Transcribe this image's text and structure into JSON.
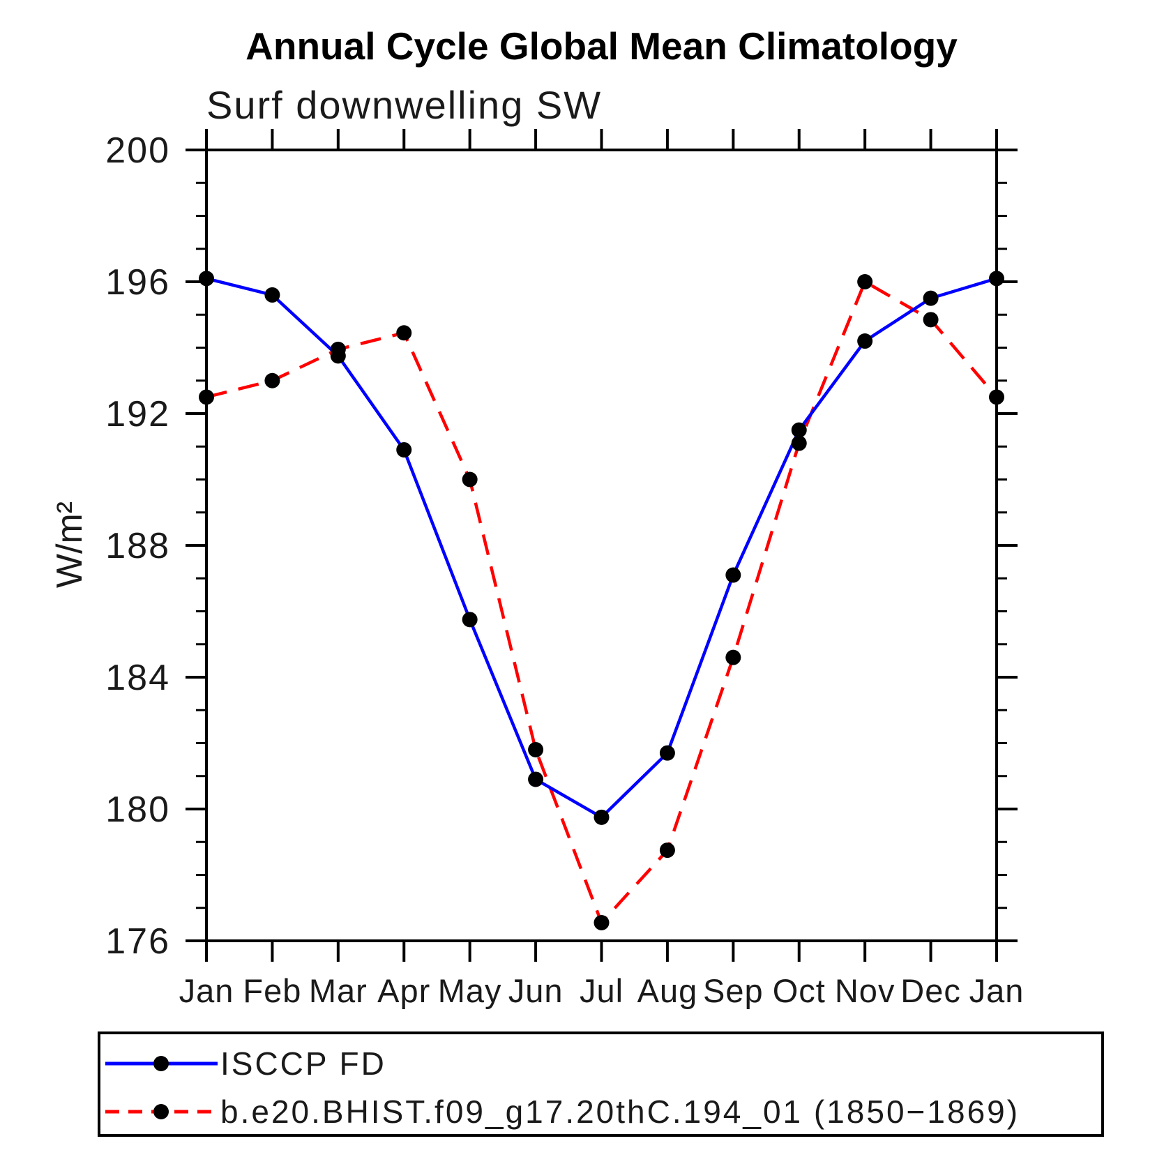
{
  "chart": {
    "title": "Annual Cycle Global Mean Climatology",
    "subtitle": "Surf downwelling SW",
    "ylabel": "W/m²"
  },
  "chart_data": {
    "type": "line",
    "title": "Annual Cycle Global Mean Climatology",
    "subtitle": "Surf downwelling SW",
    "xlabel": "",
    "ylabel": "W/m²",
    "x_categories": [
      "Jan",
      "Feb",
      "Mar",
      "Apr",
      "May",
      "Jun",
      "Jul",
      "Aug",
      "Sep",
      "Oct",
      "Nov",
      "Dec",
      "Jan"
    ],
    "ylim": [
      176,
      200
    ],
    "y_major_step": 4,
    "y_minor_step": 1,
    "y_major_ticks": [
      176,
      180,
      184,
      188,
      192,
      196,
      200
    ],
    "grid": false,
    "legend_position": "bottom",
    "axis_color": "#000000",
    "marker_color": "#000000",
    "series": [
      {
        "name": "ISCCP FD",
        "color": "#0000FF",
        "line_style": "solid",
        "marker": "circle",
        "values": [
          196.1,
          195.6,
          193.75,
          190.9,
          185.75,
          180.9,
          179.75,
          181.7,
          187.1,
          191.5,
          194.2,
          195.5,
          196.1
        ]
      },
      {
        "name": "b.e20.BHIST.f09_g17.20thC.194_01 (1850−1869)",
        "color": "#FF0000",
        "line_style": "dashed",
        "marker": "circle",
        "values": [
          192.5,
          193.0,
          193.95,
          194.45,
          190.0,
          181.8,
          176.55,
          178.75,
          184.6,
          191.1,
          196.0,
          194.85,
          192.5
        ]
      }
    ]
  }
}
